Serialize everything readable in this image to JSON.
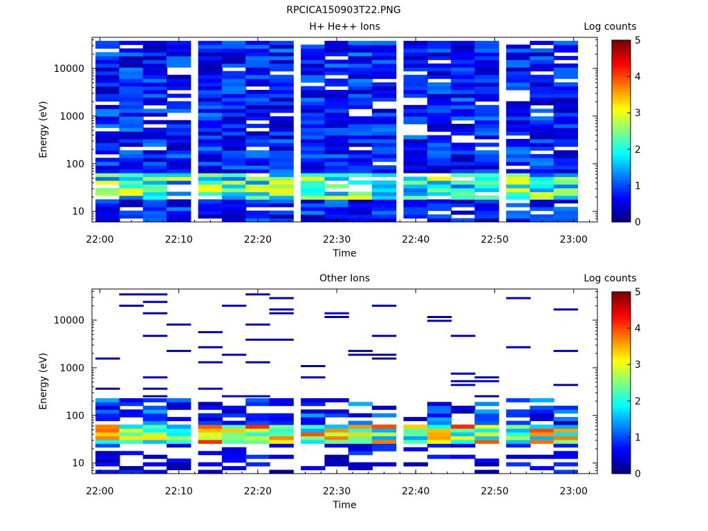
{
  "figure_title": "RPCICA150903T22.PNG",
  "chart_data": [
    {
      "type": "heatmap",
      "title": "H+ He++ Ions",
      "xlabel": "Time",
      "ylabel": "Energy (eV)",
      "colorbar_label": "Log counts",
      "x_ticks": [
        "22:00",
        "22:10",
        "22:20",
        "22:30",
        "22:40",
        "22:50",
        "23:00"
      ],
      "x_range": [
        "21:59",
        "23:03"
      ],
      "y_scale": "log",
      "y_range": [
        6,
        45000
      ],
      "y_ticks": [
        "10",
        "100",
        "1000",
        "10000"
      ],
      "colorbar_range": [
        0,
        5
      ],
      "colorbar_ticks": [
        "0",
        "1",
        "2",
        "3",
        "4",
        "5"
      ],
      "colormap": "jet",
      "time_bins": [
        "22:01",
        "22:04",
        "22:07",
        "22:10",
        "22:14",
        "22:17",
        "22:20",
        "22:23",
        "22:27",
        "22:30",
        "22:33",
        "22:36",
        "22:40",
        "22:43",
        "22:46",
        "22:49",
        "22:53",
        "22:56",
        "22:59"
      ],
      "coverage_energy_range": [
        6,
        38000
      ],
      "note_values_estimated": "Log counts mostly 0.2–1.3 above 100 eV; enhanced 1.5–3.2 in 20–60 eV band"
    },
    {
      "type": "heatmap",
      "title": "Other Ions",
      "xlabel": "Time",
      "ylabel": "Energy (eV)",
      "colorbar_label": "Log counts",
      "x_ticks": [
        "22:00",
        "22:10",
        "22:20",
        "22:30",
        "22:40",
        "22:50",
        "23:00"
      ],
      "x_range": [
        "21:59",
        "23:03"
      ],
      "y_scale": "log",
      "y_range": [
        6,
        45000
      ],
      "y_ticks": [
        "10",
        "100",
        "1000",
        "10000"
      ],
      "colorbar_range": [
        0,
        5
      ],
      "colorbar_ticks": [
        "0",
        "1",
        "2",
        "3",
        "4",
        "5"
      ],
      "colormap": "jet",
      "time_bins": [
        "22:01",
        "22:04",
        "22:07",
        "22:10",
        "22:14",
        "22:17",
        "22:20",
        "22:23",
        "22:27",
        "22:30",
        "22:33",
        "22:36",
        "22:40",
        "22:43",
        "22:46",
        "22:49",
        "22:53",
        "22:56",
        "22:59"
      ],
      "peak_band_eV": [
        25,
        60
      ],
      "peak_log_counts": 4.2
    }
  ]
}
